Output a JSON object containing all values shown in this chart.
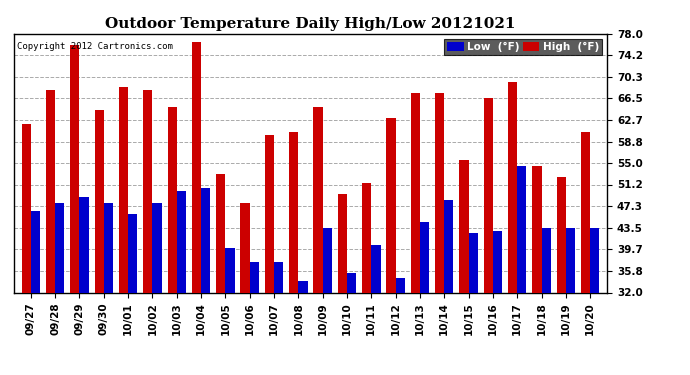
{
  "title": "Outdoor Temperature Daily High/Low 20121021",
  "copyright": "Copyright 2012 Cartronics.com",
  "legend_low_label": "Low  (°F)",
  "legend_high_label": "High  (°F)",
  "dates": [
    "09/27",
    "09/28",
    "09/29",
    "09/30",
    "10/01",
    "10/02",
    "10/03",
    "10/04",
    "10/05",
    "10/06",
    "10/07",
    "10/08",
    "10/09",
    "10/10",
    "10/11",
    "10/12",
    "10/13",
    "10/14",
    "10/15",
    "10/16",
    "10/17",
    "10/18",
    "10/19",
    "10/20"
  ],
  "highs": [
    62.0,
    68.0,
    76.0,
    64.5,
    68.5,
    68.0,
    65.0,
    76.5,
    53.0,
    48.0,
    60.0,
    60.5,
    65.0,
    49.5,
    51.5,
    63.0,
    67.5,
    67.5,
    55.5,
    66.5,
    69.5,
    54.5,
    52.5,
    60.5
  ],
  "lows": [
    46.5,
    48.0,
    49.0,
    48.0,
    46.0,
    48.0,
    50.0,
    50.5,
    40.0,
    37.5,
    37.5,
    34.0,
    43.5,
    35.5,
    40.5,
    34.5,
    44.5,
    48.5,
    42.5,
    43.0,
    54.5,
    43.5,
    43.5,
    43.5
  ],
  "ylim_min": 32.0,
  "ylim_max": 78.0,
  "yticks": [
    32.0,
    35.8,
    39.7,
    43.5,
    47.3,
    51.2,
    55.0,
    58.8,
    62.7,
    66.5,
    70.3,
    74.2,
    78.0
  ],
  "bar_width": 0.38,
  "low_color": "#0000cc",
  "high_color": "#cc0000",
  "bg_color": "#ffffff",
  "grid_color": "#aaaaaa",
  "title_fontsize": 11,
  "tick_fontsize": 7.5
}
